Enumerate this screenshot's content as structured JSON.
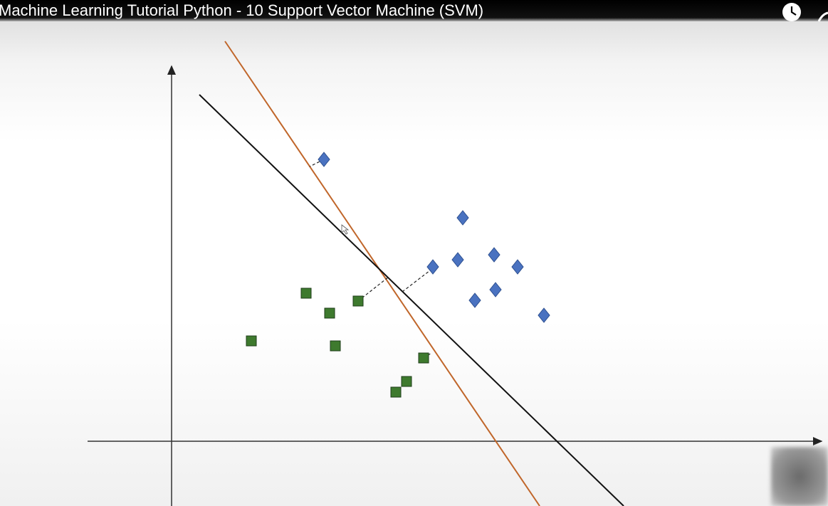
{
  "header": {
    "title": "Machine Learning Tutorial Python - 10 Support Vector Machine (SVM)"
  }
}
